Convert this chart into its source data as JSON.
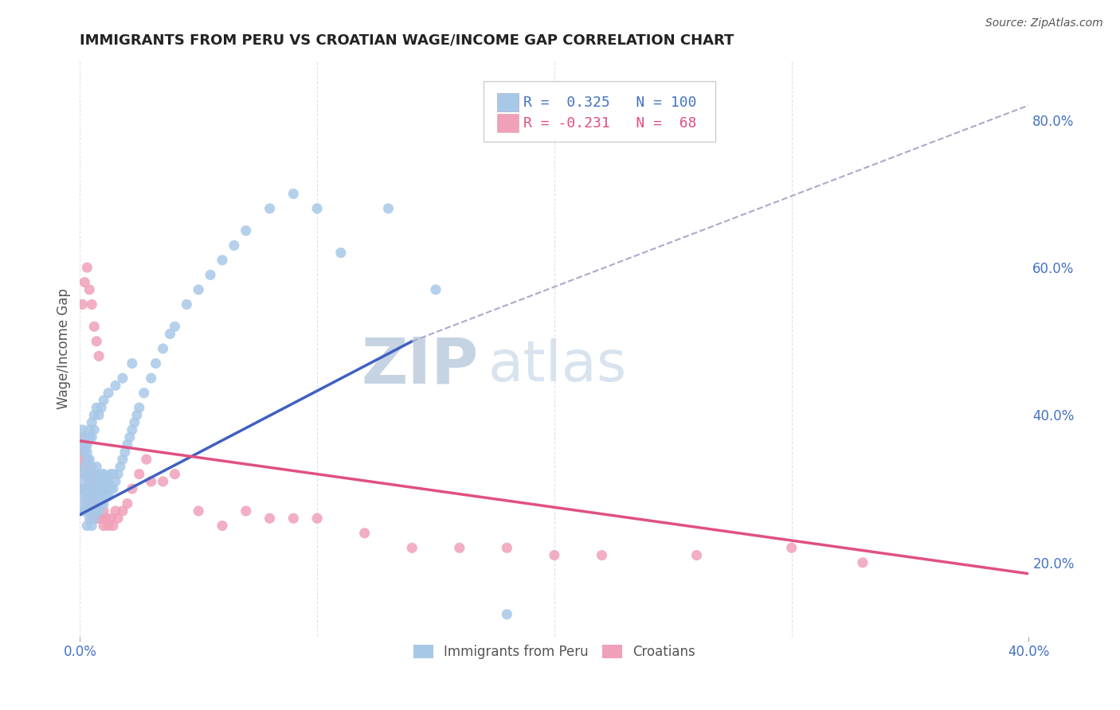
{
  "title": "IMMIGRANTS FROM PERU VS CROATIAN WAGE/INCOME GAP CORRELATION CHART",
  "source_text": "Source: ZipAtlas.com",
  "ylabel": "Wage/Income Gap",
  "xlim": [
    0.0,
    0.4
  ],
  "ylim": [
    0.1,
    0.88
  ],
  "xtick_positions": [
    0.0,
    0.4
  ],
  "xtick_labels": [
    "0.0%",
    "40.0%"
  ],
  "yticks_right": [
    0.2,
    0.4,
    0.6,
    0.8
  ],
  "ytick_labels_right": [
    "20.0%",
    "40.0%",
    "60.0%",
    "80.0%"
  ],
  "blue_R": 0.325,
  "blue_N": 100,
  "pink_R": -0.231,
  "pink_N": 68,
  "blue_color": "#A8C8E8",
  "pink_color": "#F0A0B8",
  "blue_line_color": "#4060C0",
  "pink_line_color": "#E05080",
  "gray_line_color": "#AAAACC",
  "legend_label_blue": "Immigrants from Peru",
  "legend_label_pink": "Croatians",
  "watermark_text": "ZIPatlas",
  "watermark_color": "#C8D8EC",
  "background_color": "#FFFFFF",
  "grid_color": "#D8E4F0",
  "title_color": "#222222",
  "title_fontsize": 13,
  "axis_label_color": "#555555",
  "blue_scatter_x": [
    0.001,
    0.001,
    0.001,
    0.001,
    0.002,
    0.002,
    0.002,
    0.002,
    0.002,
    0.003,
    0.003,
    0.003,
    0.003,
    0.003,
    0.003,
    0.004,
    0.004,
    0.004,
    0.004,
    0.004,
    0.005,
    0.005,
    0.005,
    0.005,
    0.005,
    0.006,
    0.006,
    0.006,
    0.006,
    0.007,
    0.007,
    0.007,
    0.007,
    0.008,
    0.008,
    0.008,
    0.009,
    0.009,
    0.009,
    0.01,
    0.01,
    0.01,
    0.011,
    0.011,
    0.012,
    0.012,
    0.013,
    0.013,
    0.014,
    0.014,
    0.015,
    0.016,
    0.017,
    0.018,
    0.019,
    0.02,
    0.021,
    0.022,
    0.023,
    0.024,
    0.025,
    0.027,
    0.03,
    0.032,
    0.035,
    0.038,
    0.04,
    0.045,
    0.05,
    0.055,
    0.06,
    0.065,
    0.07,
    0.08,
    0.09,
    0.1,
    0.11,
    0.13,
    0.15,
    0.18,
    0.001,
    0.001,
    0.002,
    0.002,
    0.003,
    0.003,
    0.004,
    0.004,
    0.005,
    0.005,
    0.006,
    0.006,
    0.007,
    0.008,
    0.009,
    0.01,
    0.012,
    0.015,
    0.018,
    0.022
  ],
  "blue_scatter_y": [
    0.27,
    0.29,
    0.3,
    0.32,
    0.27,
    0.28,
    0.3,
    0.31,
    0.33,
    0.25,
    0.27,
    0.29,
    0.3,
    0.32,
    0.34,
    0.26,
    0.28,
    0.3,
    0.32,
    0.34,
    0.25,
    0.27,
    0.29,
    0.31,
    0.33,
    0.26,
    0.28,
    0.3,
    0.32,
    0.27,
    0.29,
    0.31,
    0.33,
    0.27,
    0.29,
    0.31,
    0.28,
    0.3,
    0.32,
    0.28,
    0.3,
    0.32,
    0.29,
    0.31,
    0.29,
    0.31,
    0.3,
    0.32,
    0.3,
    0.32,
    0.31,
    0.32,
    0.33,
    0.34,
    0.35,
    0.36,
    0.37,
    0.38,
    0.39,
    0.4,
    0.41,
    0.43,
    0.45,
    0.47,
    0.49,
    0.51,
    0.52,
    0.55,
    0.57,
    0.59,
    0.61,
    0.63,
    0.65,
    0.68,
    0.7,
    0.68,
    0.62,
    0.68,
    0.57,
    0.13,
    0.36,
    0.38,
    0.35,
    0.37,
    0.35,
    0.36,
    0.37,
    0.38,
    0.37,
    0.39,
    0.38,
    0.4,
    0.41,
    0.4,
    0.41,
    0.42,
    0.43,
    0.44,
    0.45,
    0.47
  ],
  "pink_scatter_x": [
    0.001,
    0.001,
    0.001,
    0.002,
    0.002,
    0.002,
    0.002,
    0.003,
    0.003,
    0.003,
    0.003,
    0.004,
    0.004,
    0.004,
    0.004,
    0.005,
    0.005,
    0.005,
    0.005,
    0.006,
    0.006,
    0.006,
    0.007,
    0.007,
    0.007,
    0.008,
    0.008,
    0.009,
    0.009,
    0.01,
    0.01,
    0.011,
    0.012,
    0.013,
    0.014,
    0.015,
    0.016,
    0.018,
    0.02,
    0.022,
    0.025,
    0.028,
    0.03,
    0.035,
    0.04,
    0.05,
    0.06,
    0.07,
    0.08,
    0.09,
    0.1,
    0.12,
    0.14,
    0.16,
    0.18,
    0.2,
    0.22,
    0.26,
    0.3,
    0.33,
    0.001,
    0.002,
    0.003,
    0.004,
    0.005,
    0.006,
    0.007,
    0.008
  ],
  "pink_scatter_y": [
    0.33,
    0.35,
    0.37,
    0.3,
    0.32,
    0.34,
    0.36,
    0.28,
    0.3,
    0.32,
    0.34,
    0.27,
    0.29,
    0.31,
    0.33,
    0.26,
    0.28,
    0.3,
    0.32,
    0.26,
    0.28,
    0.3,
    0.26,
    0.28,
    0.3,
    0.26,
    0.28,
    0.26,
    0.28,
    0.25,
    0.27,
    0.26,
    0.25,
    0.26,
    0.25,
    0.27,
    0.26,
    0.27,
    0.28,
    0.3,
    0.32,
    0.34,
    0.31,
    0.31,
    0.32,
    0.27,
    0.25,
    0.27,
    0.26,
    0.26,
    0.26,
    0.24,
    0.22,
    0.22,
    0.22,
    0.21,
    0.21,
    0.21,
    0.22,
    0.2,
    0.55,
    0.58,
    0.6,
    0.57,
    0.55,
    0.52,
    0.5,
    0.48
  ],
  "blue_trend_x": [
    0.0,
    0.14
  ],
  "blue_trend_y": [
    0.265,
    0.5
  ],
  "pink_trend_x": [
    0.0,
    0.4
  ],
  "pink_trend_y": [
    0.365,
    0.185
  ],
  "gray_trend_x": [
    0.14,
    0.4
  ],
  "gray_trend_y": [
    0.5,
    0.82
  ]
}
